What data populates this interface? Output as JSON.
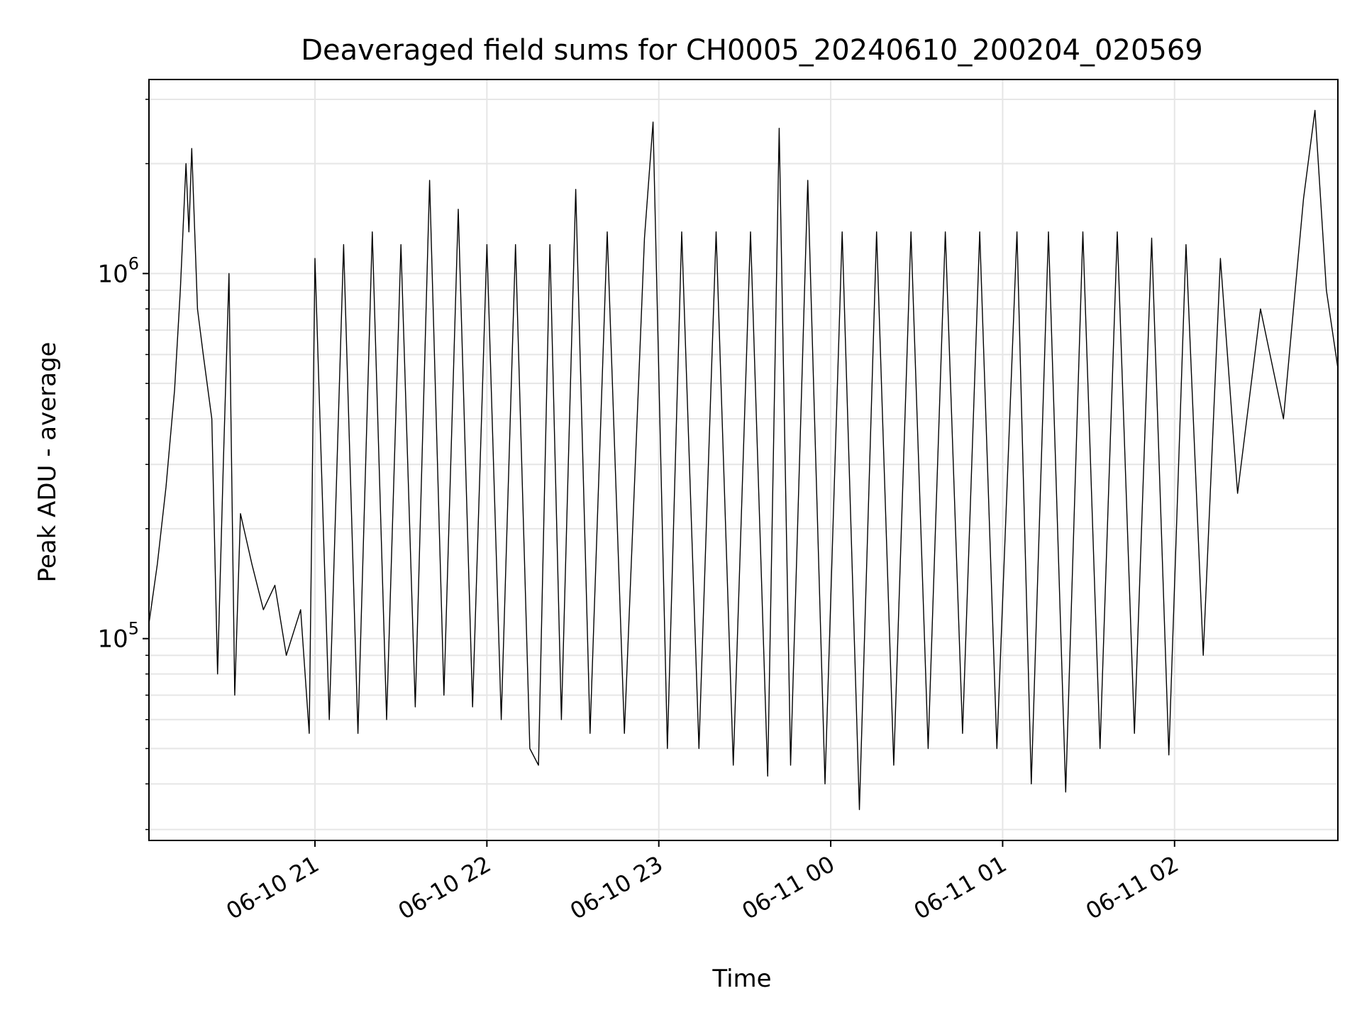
{
  "chart_data": {
    "type": "line",
    "title": "Deaveraged field sums for CH0005_20240610_200204_020569",
    "xlabel": "Time",
    "ylabel": "Peak ADU - average",
    "yscale": "log",
    "ylim": [
      28000,
      3400000
    ],
    "xlim": [
      "2024-06-10 20:02:04",
      "2024-06-11 02:57:00"
    ],
    "grid": true,
    "xticks": [
      {
        "value": "2024-06-10 21:00",
        "label": "06-10 21"
      },
      {
        "value": "2024-06-10 22:00",
        "label": "06-10 22"
      },
      {
        "value": "2024-06-10 23:00",
        "label": "06-10 23"
      },
      {
        "value": "2024-06-11 00:00",
        "label": "06-11 00"
      },
      {
        "value": "2024-06-11 01:00",
        "label": "06-11 01"
      },
      {
        "value": "2024-06-11 02:00",
        "label": "06-11 02"
      }
    ],
    "yticks": [
      {
        "value": 100000,
        "base": "10",
        "exp": "5"
      },
      {
        "value": 1000000,
        "base": "10",
        "exp": "6"
      }
    ],
    "line_color": "#000000",
    "grid_color": "#e6e6e6",
    "series": [
      {
        "points": [
          [
            "2024-06-10 20:02:04",
            110000
          ],
          [
            "2024-06-10 20:05",
            160000
          ],
          [
            "2024-06-10 20:08",
            260000
          ],
          [
            "2024-06-10 20:11",
            480000
          ],
          [
            "2024-06-10 20:13",
            900000
          ],
          [
            "2024-06-10 20:15",
            2000000
          ],
          [
            "2024-06-10 20:16",
            1300000
          ],
          [
            "2024-06-10 20:17",
            2200000
          ],
          [
            "2024-06-10 20:19",
            800000
          ],
          [
            "2024-06-10 20:21",
            600000
          ],
          [
            "2024-06-10 20:24",
            400000
          ],
          [
            "2024-06-10 20:26",
            80000
          ],
          [
            "2024-06-10 20:28",
            300000
          ],
          [
            "2024-06-10 20:30",
            1000000
          ],
          [
            "2024-06-10 20:32",
            70000
          ],
          [
            "2024-06-10 20:34",
            220000
          ],
          [
            "2024-06-10 20:38",
            160000
          ],
          [
            "2024-06-10 20:42",
            120000
          ],
          [
            "2024-06-10 20:46",
            140000
          ],
          [
            "2024-06-10 20:50",
            90000
          ],
          [
            "2024-06-10 20:55",
            120000
          ],
          [
            "2024-06-10 20:58",
            55000
          ],
          [
            "2024-06-10 21:00",
            1100000
          ],
          [
            "2024-06-10 21:05",
            60000
          ],
          [
            "2024-06-10 21:10",
            1200000
          ],
          [
            "2024-06-10 21:15",
            55000
          ],
          [
            "2024-06-10 21:20",
            1300000
          ],
          [
            "2024-06-10 21:25",
            60000
          ],
          [
            "2024-06-10 21:30",
            1200000
          ],
          [
            "2024-06-10 21:35",
            65000
          ],
          [
            "2024-06-10 21:40",
            1800000
          ],
          [
            "2024-06-10 21:45",
            70000
          ],
          [
            "2024-06-10 21:50",
            1500000
          ],
          [
            "2024-06-10 21:55",
            65000
          ],
          [
            "2024-06-10 22:00",
            1200000
          ],
          [
            "2024-06-10 22:05",
            60000
          ],
          [
            "2024-06-10 22:10",
            1200000
          ],
          [
            "2024-06-10 22:15",
            50000
          ],
          [
            "2024-06-10 22:18",
            45000
          ],
          [
            "2024-06-10 22:22",
            1200000
          ],
          [
            "2024-06-10 22:26",
            60000
          ],
          [
            "2024-06-10 22:31",
            1700000
          ],
          [
            "2024-06-10 22:36",
            55000
          ],
          [
            "2024-06-10 22:42",
            1300000
          ],
          [
            "2024-06-10 22:48",
            55000
          ],
          [
            "2024-06-10 22:55",
            1250000
          ],
          [
            "2024-06-10 22:58",
            2600000
          ],
          [
            "2024-06-10 23:03",
            50000
          ],
          [
            "2024-06-10 23:08",
            1300000
          ],
          [
            "2024-06-10 23:14",
            50000
          ],
          [
            "2024-06-10 23:20",
            1300000
          ],
          [
            "2024-06-10 23:26",
            45000
          ],
          [
            "2024-06-10 23:32",
            1300000
          ],
          [
            "2024-06-10 23:38",
            42000
          ],
          [
            "2024-06-10 23:42",
            2500000
          ],
          [
            "2024-06-10 23:46",
            45000
          ],
          [
            "2024-06-10 23:52",
            1800000
          ],
          [
            "2024-06-10 23:58",
            40000
          ],
          [
            "2024-06-11 00:04",
            1300000
          ],
          [
            "2024-06-11 00:10",
            34000
          ],
          [
            "2024-06-11 00:16",
            1300000
          ],
          [
            "2024-06-11 00:22",
            45000
          ],
          [
            "2024-06-11 00:28",
            1300000
          ],
          [
            "2024-06-11 00:34",
            50000
          ],
          [
            "2024-06-11 00:40",
            1300000
          ],
          [
            "2024-06-11 00:46",
            55000
          ],
          [
            "2024-06-11 00:52",
            1300000
          ],
          [
            "2024-06-11 00:58",
            50000
          ],
          [
            "2024-06-11 01:05",
            1300000
          ],
          [
            "2024-06-11 01:10",
            40000
          ],
          [
            "2024-06-11 01:16",
            1300000
          ],
          [
            "2024-06-11 01:22",
            38000
          ],
          [
            "2024-06-11 01:28",
            1300000
          ],
          [
            "2024-06-11 01:34",
            50000
          ],
          [
            "2024-06-11 01:40",
            1300000
          ],
          [
            "2024-06-11 01:46",
            55000
          ],
          [
            "2024-06-11 01:52",
            1250000
          ],
          [
            "2024-06-11 01:58",
            48000
          ],
          [
            "2024-06-11 02:04",
            1200000
          ],
          [
            "2024-06-11 02:10",
            90000
          ],
          [
            "2024-06-11 02:16",
            1100000
          ],
          [
            "2024-06-11 02:22",
            250000
          ],
          [
            "2024-06-11 02:30",
            800000
          ],
          [
            "2024-06-11 02:38",
            400000
          ],
          [
            "2024-06-11 02:45",
            1600000
          ],
          [
            "2024-06-11 02:49",
            2800000
          ],
          [
            "2024-06-11 02:53",
            900000
          ],
          [
            "2024-06-11 02:57",
            550000
          ]
        ]
      }
    ]
  }
}
